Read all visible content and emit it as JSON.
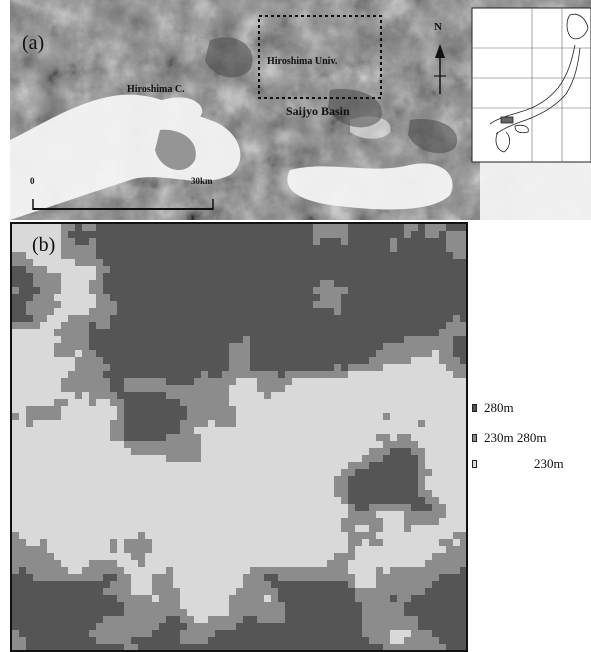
{
  "panel_a": {
    "label": "(a)",
    "city_label": "Hiroshima C.",
    "univ_label": "Hiroshima Univ.",
    "basin_label": "Saijyo Basin",
    "north_label": "N",
    "scale_start": "0",
    "scale_end": "30km"
  },
  "panel_b": {
    "label": "(b)"
  },
  "legend": {
    "items": [
      {
        "text": "280m",
        "color": "#555555"
      },
      {
        "text": "230m  280m",
        "color": "#8c8c8c"
      },
      {
        "text": "230m",
        "color": "#d9d9d9"
      }
    ]
  },
  "colors": {
    "high": "#555555",
    "mid": "#8c8c8c",
    "low": "#d9d9d9"
  }
}
